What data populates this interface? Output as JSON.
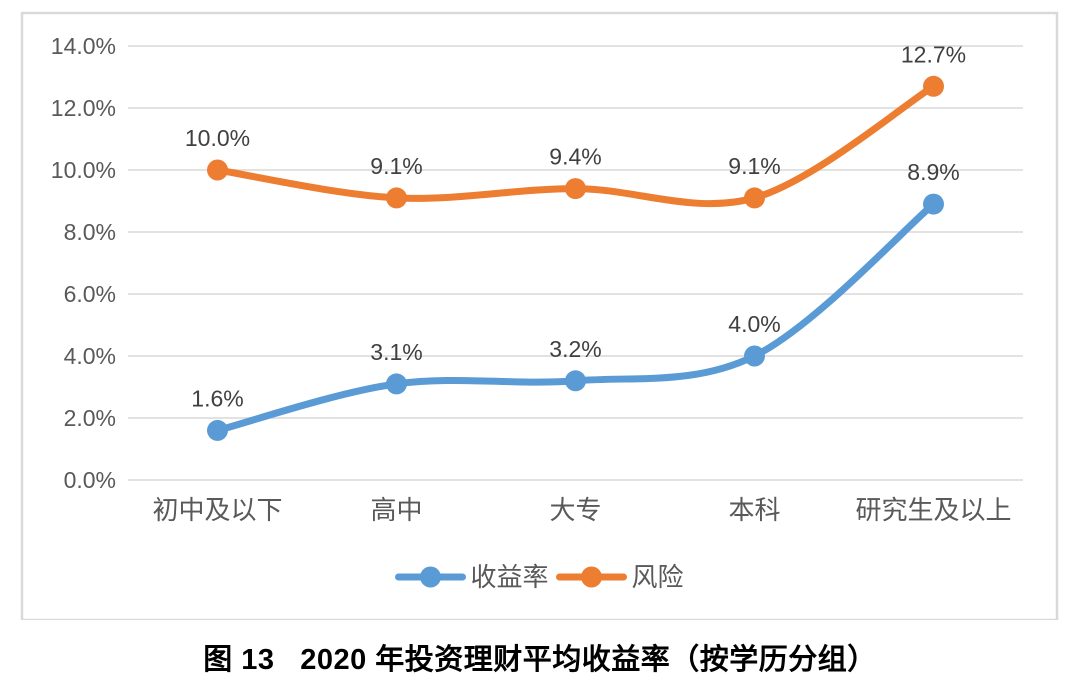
{
  "caption": "图 13   2020 年投资理财平均收益率（按学历分组）",
  "chart_data": {
    "type": "line",
    "categories": [
      "初中及以下",
      "高中",
      "大专",
      "本科",
      "研究生及以上"
    ],
    "series": [
      {
        "name": "收益率",
        "values": [
          1.6,
          3.1,
          3.2,
          4.0,
          8.9
        ],
        "labels": [
          "1.6%",
          "3.1%",
          "3.2%",
          "4.0%",
          "8.9%"
        ],
        "color": "#5B9BD5"
      },
      {
        "name": "风险",
        "values": [
          10.0,
          9.1,
          9.4,
          9.1,
          12.7
        ],
        "labels": [
          "10.0%",
          "9.1%",
          "9.4%",
          "9.1%",
          "12.7%"
        ],
        "color": "#ED7D31"
      }
    ],
    "y_axis": {
      "min": 0,
      "max": 14,
      "step": 2,
      "tick_labels": [
        "0.0%",
        "2.0%",
        "4.0%",
        "6.0%",
        "8.0%",
        "10.0%",
        "12.0%",
        "14.0%"
      ]
    },
    "grid": true,
    "legend_position": "bottom",
    "line_smoothing": true,
    "colors": {
      "gridline": "#D9D9D9",
      "plot_border": "#D9D9D9",
      "axis_text": "#595959",
      "data_label_text": "#404040",
      "caption_text": "#000000",
      "background": "#FFFFFF"
    }
  }
}
